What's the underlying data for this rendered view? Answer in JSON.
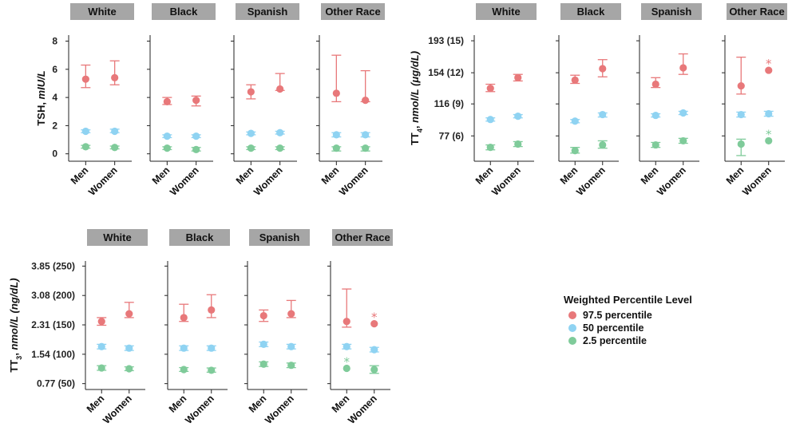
{
  "chart_data": [
    {
      "type": "scatter",
      "ylabel_main": "TSH, ",
      "ylabel_unit": "mIU/L",
      "yticks": [
        "0",
        "2",
        "4",
        "6",
        "8"
      ],
      "ytick_values": [
        0,
        2,
        4,
        6,
        8
      ],
      "ylim": [
        -0.3,
        8.2
      ],
      "panels": [
        {
          "title": "White",
          "categories": [
            "Men",
            "Women"
          ],
          "series": [
            {
              "level": "97.5",
              "points": [
                {
                  "y": 5.3,
                  "lo": 4.7,
                  "hi": 6.3
                },
                {
                  "y": 5.4,
                  "lo": 4.9,
                  "hi": 6.6
                }
              ]
            },
            {
              "level": "50",
              "points": [
                {
                  "y": 1.6,
                  "lo": 1.5,
                  "hi": 1.7
                },
                {
                  "y": 1.6,
                  "lo": 1.5,
                  "hi": 1.75
                }
              ]
            },
            {
              "level": "2.5",
              "points": [
                {
                  "y": 0.5,
                  "lo": 0.4,
                  "hi": 0.6
                },
                {
                  "y": 0.45,
                  "lo": 0.35,
                  "hi": 0.55
                }
              ]
            }
          ]
        },
        {
          "title": "Black",
          "categories": [
            "Men",
            "Women"
          ],
          "series": [
            {
              "level": "97.5",
              "points": [
                {
                  "y": 3.7,
                  "lo": 3.5,
                  "hi": 4.0
                },
                {
                  "y": 3.8,
                  "lo": 3.4,
                  "hi": 4.1
                }
              ]
            },
            {
              "level": "50",
              "points": [
                {
                  "y": 1.25,
                  "lo": 1.15,
                  "hi": 1.35
                },
                {
                  "y": 1.25,
                  "lo": 1.15,
                  "hi": 1.35
                }
              ]
            },
            {
              "level": "2.5",
              "points": [
                {
                  "y": 0.4,
                  "lo": 0.3,
                  "hi": 0.5
                },
                {
                  "y": 0.3,
                  "lo": 0.2,
                  "hi": 0.45
                }
              ]
            }
          ]
        },
        {
          "title": "Spanish",
          "categories": [
            "Men",
            "Women"
          ],
          "series": [
            {
              "level": "97.5",
              "points": [
                {
                  "y": 4.4,
                  "lo": 3.9,
                  "hi": 4.9
                },
                {
                  "y": 4.6,
                  "lo": 4.5,
                  "hi": 5.7
                }
              ]
            },
            {
              "level": "50",
              "points": [
                {
                  "y": 1.45,
                  "lo": 1.35,
                  "hi": 1.55
                },
                {
                  "y": 1.5,
                  "lo": 1.4,
                  "hi": 1.6
                }
              ]
            },
            {
              "level": "2.5",
              "points": [
                {
                  "y": 0.4,
                  "lo": 0.3,
                  "hi": 0.5
                },
                {
                  "y": 0.4,
                  "lo": 0.3,
                  "hi": 0.5
                }
              ]
            }
          ]
        },
        {
          "title": "Other Race",
          "categories": [
            "Men",
            "Women"
          ],
          "series": [
            {
              "level": "97.5",
              "points": [
                {
                  "y": 4.3,
                  "lo": 3.7,
                  "hi": 7.0
                },
                {
                  "y": 3.8,
                  "lo": 3.7,
                  "hi": 5.9
                }
              ]
            },
            {
              "level": "50",
              "points": [
                {
                  "y": 1.35,
                  "lo": 1.2,
                  "hi": 1.5
                },
                {
                  "y": 1.35,
                  "lo": 1.2,
                  "hi": 1.5
                }
              ]
            },
            {
              "level": "2.5",
              "points": [
                {
                  "y": 0.4,
                  "lo": 0.2,
                  "hi": 0.5
                },
                {
                  "y": 0.4,
                  "lo": 0.2,
                  "hi": 0.5
                }
              ]
            }
          ]
        }
      ]
    },
    {
      "type": "scatter",
      "ylabel_main": "TT",
      "ylabel_sub": "4",
      "ylabel_rest": ", ",
      "ylabel_unit": "nmol/L (μg/dL)",
      "yticks": [
        "193 (15)",
        "154 (12)",
        "116 (9)",
        "77 (6)"
      ],
      "ytick_values": [
        193,
        154,
        116,
        77
      ],
      "ylim": [
        50,
        196
      ],
      "panels": [
        {
          "title": "White",
          "categories": [
            "Men",
            "Women"
          ],
          "series": [
            {
              "level": "97.5",
              "points": [
                {
                  "y": 135,
                  "lo": 131,
                  "hi": 140
                },
                {
                  "y": 148,
                  "lo": 144,
                  "hi": 152
                }
              ]
            },
            {
              "level": "50",
              "points": [
                {
                  "y": 97,
                  "lo": 95,
                  "hi": 99
                },
                {
                  "y": 101,
                  "lo": 99,
                  "hi": 103
                }
              ]
            },
            {
              "level": "2.5",
              "points": [
                {
                  "y": 63,
                  "lo": 60,
                  "hi": 66
                },
                {
                  "y": 67,
                  "lo": 64,
                  "hi": 70
                }
              ]
            }
          ]
        },
        {
          "title": "Black",
          "categories": [
            "Men",
            "Women"
          ],
          "series": [
            {
              "level": "97.5",
              "points": [
                {
                  "y": 145,
                  "lo": 141,
                  "hi": 151
                },
                {
                  "y": 159,
                  "lo": 149,
                  "hi": 170
                }
              ]
            },
            {
              "level": "50",
              "points": [
                {
                  "y": 95,
                  "lo": 93,
                  "hi": 97
                },
                {
                  "y": 103,
                  "lo": 100,
                  "hi": 105
                }
              ]
            },
            {
              "level": "2.5",
              "points": [
                {
                  "y": 59,
                  "lo": 56,
                  "hi": 63
                },
                {
                  "y": 66,
                  "lo": 62,
                  "hi": 71
                }
              ]
            }
          ]
        },
        {
          "title": "Spanish",
          "categories": [
            "Men",
            "Women"
          ],
          "series": [
            {
              "level": "97.5",
              "points": [
                {
                  "y": 140,
                  "lo": 136,
                  "hi": 148
                },
                {
                  "y": 160,
                  "lo": 152,
                  "hi": 177
                }
              ]
            },
            {
              "level": "50",
              "points": [
                {
                  "y": 102,
                  "lo": 100,
                  "hi": 104
                },
                {
                  "y": 105,
                  "lo": 103,
                  "hi": 107
                }
              ]
            },
            {
              "level": "2.5",
              "points": [
                {
                  "y": 66,
                  "lo": 63,
                  "hi": 69
                },
                {
                  "y": 71,
                  "lo": 68,
                  "hi": 74
                }
              ]
            }
          ]
        },
        {
          "title": "Other Race",
          "categories": [
            "Men",
            "Women"
          ],
          "series": [
            {
              "level": "97.5",
              "points": [
                {
                  "y": 138,
                  "lo": 128,
                  "hi": 173
                },
                {
                  "y": 157,
                  "lo": 157,
                  "hi": 157,
                  "no_bar": true,
                  "star": true
                }
              ]
            },
            {
              "level": "50",
              "points": [
                {
                  "y": 103,
                  "lo": 100,
                  "hi": 106
                },
                {
                  "y": 104,
                  "lo": 101,
                  "hi": 107
                }
              ]
            },
            {
              "level": "2.5",
              "points": [
                {
                  "y": 67,
                  "lo": 53,
                  "hi": 73
                },
                {
                  "y": 71,
                  "lo": 71,
                  "hi": 71,
                  "no_bar": true,
                  "star": true
                }
              ]
            }
          ]
        }
      ]
    },
    {
      "type": "scatter",
      "ylabel_main": "TT",
      "ylabel_sub": "3",
      "ylabel_rest": ", ",
      "ylabel_unit": "nmol/L (ng/dL)",
      "yticks": [
        "3.85 (250)",
        "3.08 (200)",
        "2.31 (150)",
        "1.54 (100)",
        "0.77 (50)"
      ],
      "ytick_values": [
        3.85,
        3.08,
        2.31,
        1.54,
        0.77
      ],
      "ylim": [
        0.7,
        3.9
      ],
      "panels": [
        {
          "title": "White",
          "categories": [
            "Men",
            "Women"
          ],
          "series": [
            {
              "level": "97.5",
              "points": [
                {
                  "y": 2.4,
                  "lo": 2.3,
                  "hi": 2.5
                },
                {
                  "y": 2.6,
                  "lo": 2.5,
                  "hi": 2.9
                }
              ]
            },
            {
              "level": "50",
              "points": [
                {
                  "y": 1.74,
                  "lo": 1.68,
                  "hi": 1.8
                },
                {
                  "y": 1.7,
                  "lo": 1.64,
                  "hi": 1.76
                }
              ]
            },
            {
              "level": "2.5",
              "points": [
                {
                  "y": 1.18,
                  "lo": 1.12,
                  "hi": 1.24
                },
                {
                  "y": 1.16,
                  "lo": 1.11,
                  "hi": 1.21
                }
              ]
            }
          ]
        },
        {
          "title": "Black",
          "categories": [
            "Men",
            "Women"
          ],
          "series": [
            {
              "level": "97.5",
              "points": [
                {
                  "y": 2.5,
                  "lo": 2.4,
                  "hi": 2.85
                },
                {
                  "y": 2.7,
                  "lo": 2.5,
                  "hi": 3.1
                }
              ]
            },
            {
              "level": "50",
              "points": [
                {
                  "y": 1.7,
                  "lo": 1.64,
                  "hi": 1.76
                },
                {
                  "y": 1.7,
                  "lo": 1.64,
                  "hi": 1.76
                }
              ]
            },
            {
              "level": "2.5",
              "points": [
                {
                  "y": 1.14,
                  "lo": 1.09,
                  "hi": 1.19
                },
                {
                  "y": 1.12,
                  "lo": 1.07,
                  "hi": 1.18
                }
              ]
            }
          ]
        },
        {
          "title": "Spanish",
          "categories": [
            "Men",
            "Women"
          ],
          "series": [
            {
              "level": "97.5",
              "points": [
                {
                  "y": 2.55,
                  "lo": 2.4,
                  "hi": 2.7
                },
                {
                  "y": 2.6,
                  "lo": 2.5,
                  "hi": 2.95
                }
              ]
            },
            {
              "level": "50",
              "points": [
                {
                  "y": 1.8,
                  "lo": 1.74,
                  "hi": 1.86
                },
                {
                  "y": 1.74,
                  "lo": 1.68,
                  "hi": 1.8
                }
              ]
            },
            {
              "level": "2.5",
              "points": [
                {
                  "y": 1.28,
                  "lo": 1.22,
                  "hi": 1.34
                },
                {
                  "y": 1.25,
                  "lo": 1.19,
                  "hi": 1.31
                }
              ]
            }
          ]
        },
        {
          "title": "Other Race",
          "categories": [
            "Men",
            "Women"
          ],
          "series": [
            {
              "level": "97.5",
              "points": [
                {
                  "y": 2.4,
                  "lo": 2.25,
                  "hi": 3.25
                },
                {
                  "y": 2.34,
                  "lo": 2.34,
                  "hi": 2.34,
                  "no_bar": true,
                  "star": true
                }
              ]
            },
            {
              "level": "50",
              "points": [
                {
                  "y": 1.74,
                  "lo": 1.68,
                  "hi": 1.8
                },
                {
                  "y": 1.66,
                  "lo": 1.6,
                  "hi": 1.72
                }
              ]
            },
            {
              "level": "2.5",
              "points": [
                {
                  "y": 1.17,
                  "lo": 1.17,
                  "hi": 1.17,
                  "no_bar": true,
                  "star": true
                },
                {
                  "y": 1.14,
                  "lo": 1.04,
                  "hi": 1.24
                }
              ]
            }
          ]
        }
      ]
    }
  ],
  "legend": {
    "title": "Weighted Percentile Level",
    "items": [
      {
        "label": "97.5 percentile",
        "color": "#e8787a"
      },
      {
        "label": "50 percentile",
        "color": "#8fd3f2"
      },
      {
        "label": "2.5 percentile",
        "color": "#7fcb9a"
      }
    ]
  },
  "colors": {
    "97.5": "#e8787a",
    "50": "#8fd3f2",
    "2.5": "#7fcb9a",
    "panel_header": "#a6a6a6"
  }
}
